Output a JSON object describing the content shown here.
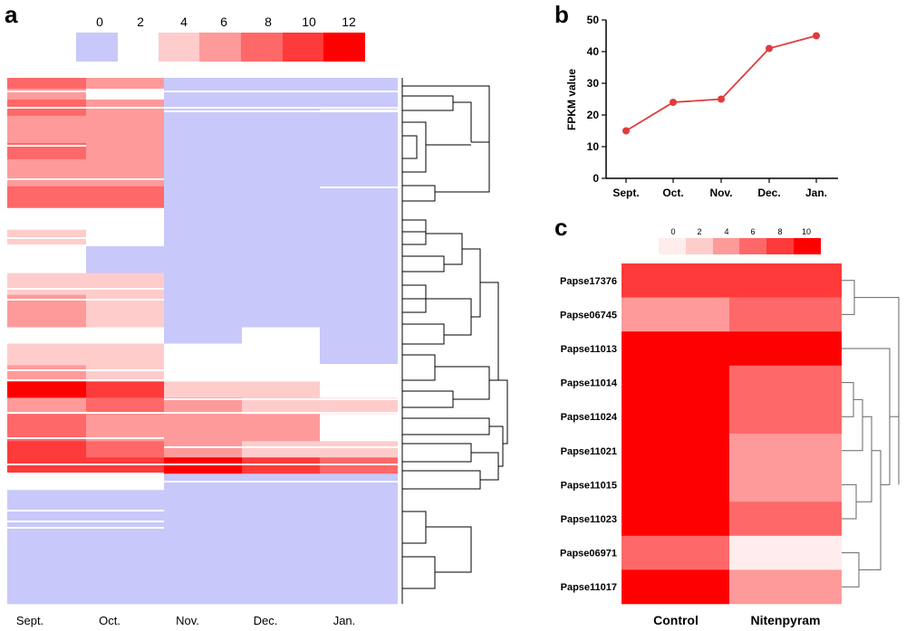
{
  "figure": {
    "panel_a": "a",
    "panel_b": "b",
    "panel_c": "c"
  },
  "chart_data": [
    {
      "id": "a",
      "type": "heatmap",
      "legend": {
        "ticks": [
          "0",
          "2",
          "4",
          "6",
          "8",
          "10",
          "12"
        ],
        "colors": [
          "#c8c8fa",
          "#ffffff",
          "#ffcccc",
          "#ff9a9a",
          "#ff6868",
          "#ff3a3a",
          "#ff0000"
        ]
      },
      "columns": [
        "Sept.",
        "Oct.",
        "Nov.",
        "Dec.",
        "Jan."
      ],
      "bands": [
        {
          "rows": 4,
          "values": [
            7,
            6,
            0,
            0,
            0
          ]
        },
        {
          "rows": 4,
          "values": [
            6,
            2,
            0,
            0,
            0
          ]
        },
        {
          "rows": 6,
          "values": [
            8,
            6,
            0,
            0,
            0
          ]
        },
        {
          "rows": 10,
          "values": [
            6,
            6,
            0,
            0,
            0
          ]
        },
        {
          "rows": 6,
          "values": [
            7,
            6,
            0,
            0,
            0
          ]
        },
        {
          "rows": 10,
          "values": [
            6,
            6,
            0,
            0,
            0
          ]
        },
        {
          "rows": 8,
          "values": [
            8,
            8,
            0,
            0,
            0
          ]
        },
        {
          "rows": 8,
          "values": [
            2,
            2,
            0,
            0,
            0
          ]
        },
        {
          "rows": 6,
          "values": [
            4,
            2,
            0,
            0,
            0
          ]
        },
        {
          "rows": 10,
          "values": [
            2,
            0,
            0,
            0,
            0
          ]
        },
        {
          "rows": 8,
          "values": [
            4,
            4,
            0,
            0,
            0
          ]
        },
        {
          "rows": 12,
          "values": [
            6,
            4,
            0,
            0,
            0
          ]
        },
        {
          "rows": 6,
          "values": [
            2,
            2,
            0,
            2,
            0
          ]
        },
        {
          "rows": 8,
          "values": [
            4,
            4,
            2,
            2,
            0
          ]
        },
        {
          "rows": 6,
          "values": [
            6,
            4,
            2,
            2,
            2
          ]
        },
        {
          "rows": 6,
          "values": [
            12,
            10,
            4,
            4,
            2
          ]
        },
        {
          "rows": 6,
          "values": [
            6,
            8,
            6,
            4,
            4
          ]
        },
        {
          "rows": 10,
          "values": [
            8,
            6,
            6,
            6,
            2
          ]
        },
        {
          "rows": 6,
          "values": [
            10,
            8,
            6,
            4,
            4
          ]
        },
        {
          "rows": 6,
          "values": [
            10,
            10,
            12,
            10,
            8
          ]
        },
        {
          "rows": 6,
          "values": [
            2,
            2,
            0,
            0,
            0
          ]
        },
        {
          "rows": 42,
          "values": [
            0,
            0,
            0,
            0,
            0
          ]
        }
      ]
    },
    {
      "id": "b",
      "type": "line",
      "categories": [
        "Sept.",
        "Oct.",
        "Nov.",
        "Dec.",
        "Jan."
      ],
      "values": [
        15,
        24,
        25,
        41,
        45
      ],
      "ylabel": "FPKM value",
      "ylim": [
        0,
        50
      ],
      "yticks": [
        "0",
        "10",
        "20",
        "30",
        "40",
        "50"
      ],
      "color": "#e03c3c",
      "grid": false
    },
    {
      "id": "c",
      "type": "heatmap",
      "legend": {
        "ticks": [
          "0",
          "2",
          "4",
          "6",
          "8",
          "10"
        ],
        "colors": [
          "#ffecec",
          "#ffcccc",
          "#ff9a9a",
          "#ff6868",
          "#ff3a3a",
          "#ff0000"
        ]
      },
      "columns": [
        "Control",
        "Nitenpyram"
      ],
      "rows": [
        "Papse17376",
        "Papse06745",
        "Papse11013",
        "Papse11014",
        "Papse11024",
        "Papse11021",
        "Papse11015",
        "Papse11023",
        "Papse06971",
        "Papse11017"
      ],
      "values": [
        [
          7,
          8
        ],
        [
          3,
          5
        ],
        [
          9,
          11
        ],
        [
          9,
          5
        ],
        [
          10,
          6
        ],
        [
          9,
          4
        ],
        [
          11,
          4
        ],
        [
          11,
          6
        ],
        [
          5,
          0
        ],
        [
          9,
          4
        ]
      ]
    }
  ]
}
